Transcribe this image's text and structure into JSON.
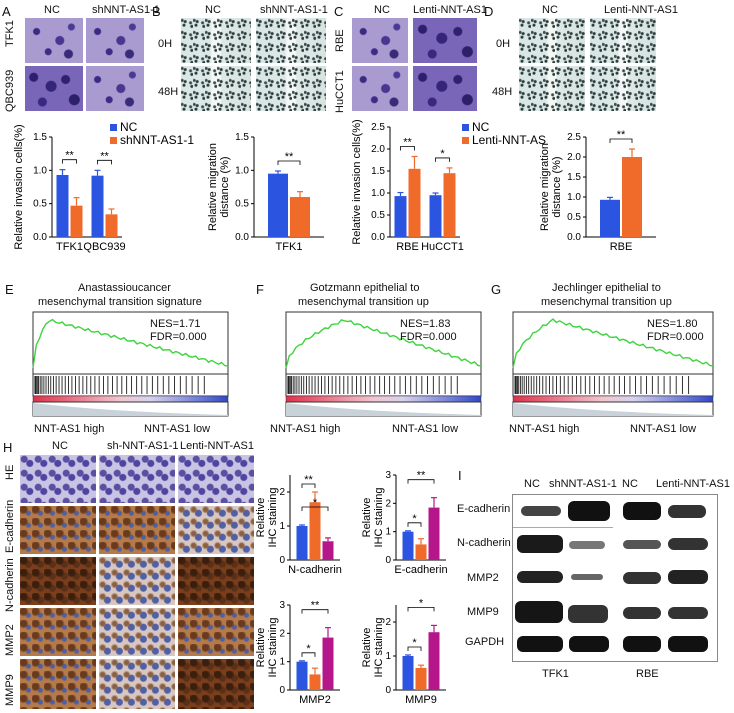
{
  "panels": {
    "A": {
      "letter": "A",
      "col_labels": [
        "NC",
        "shNNT-AS1-1"
      ],
      "row_labels": [
        "TFK1",
        "QBC939"
      ]
    },
    "B": {
      "letter": "B",
      "col_labels": [
        "NC",
        "shNNT-AS1-1"
      ],
      "row_labels": [
        "0H",
        "48H"
      ]
    },
    "C": {
      "letter": "C",
      "col_labels": [
        "NC",
        "Lenti-NNT-AS1"
      ],
      "row_labels": [
        "RBE",
        "HuCCT1"
      ]
    },
    "D": {
      "letter": "D",
      "col_labels": [
        "NC",
        "Lenti-NNT-AS1"
      ],
      "row_labels": [
        "0H",
        "48H"
      ]
    },
    "E": {
      "letter": "E",
      "title_line1": "Anastassioucancer",
      "title_line2": "mesenchymal transition signature",
      "nes": "NES=1.71",
      "fdr": "FDR=0.000",
      "left": "NNT-AS1 high",
      "right": "NNT-AS1 low"
    },
    "F": {
      "letter": "F",
      "title_line1": "Gotzmann epithelial to",
      "title_line2": "mesenchymal transition up",
      "nes": "NES=1.83",
      "fdr": "FDR=0.000",
      "left": "NNT-AS1 high",
      "right": "NNT-AS1 low"
    },
    "G": {
      "letter": "G",
      "title_line1": "Jechlinger epithelial to",
      "title_line2": "mesenchymal transition up",
      "nes": "NES=1.80",
      "fdr": "FDR=0.000",
      "left": "NNT-AS1 high",
      "right": "NNT-AS1 low"
    },
    "H": {
      "letter": "H",
      "col_labels": [
        "NC",
        "sh-NNT-AS1-1",
        "Lenti-NNT-AS1"
      ],
      "row_labels": [
        "HE",
        "E-cadherin",
        "N-cadherin",
        "MMP2",
        "MMP9"
      ]
    },
    "I": {
      "letter": "I",
      "lane_labels": [
        "NC",
        "shNNT-AS1-1",
        "NC",
        "Lenti-NNT-AS1"
      ],
      "row_labels": [
        "E-cadherin",
        "N-cadherin",
        "MMP2",
        "MMP9",
        "GAPDH"
      ],
      "group_labels": [
        "TFK1",
        "RBE"
      ]
    }
  },
  "colors": {
    "blue": "#2b54e0",
    "orange": "#f06a2a",
    "magenta": "#b5168a"
  },
  "sig": {
    "two": "**",
    "one": "*"
  },
  "chart_data": [
    {
      "id": "A",
      "type": "bar",
      "categories": [
        "TFK1",
        "QBC939"
      ],
      "series": [
        {
          "name": "NC",
          "values": [
            0.93,
            0.92
          ],
          "err": [
            0.08,
            0.08
          ]
        },
        {
          "name": "shNNT-AS1-1",
          "values": [
            0.47,
            0.34
          ],
          "err": [
            0.12,
            0.08
          ]
        }
      ],
      "ylabel": "Relative invasion cells(%)",
      "ylim": [
        0,
        1.5
      ],
      "yticks": [
        "0.0",
        "0.5",
        "1.0",
        "1.5"
      ]
    },
    {
      "id": "B",
      "type": "bar",
      "categories": [
        "TFK1"
      ],
      "series": [
        {
          "name": "NC",
          "values": [
            0.95
          ],
          "err": [
            0.04
          ]
        },
        {
          "name": "shNNT-AS1-1",
          "values": [
            0.6
          ],
          "err": [
            0.08
          ]
        }
      ],
      "ylabel": "Relative migration distance (%)",
      "ylim": [
        0,
        1.5
      ],
      "yticks": [
        "0.0",
        "0.5",
        "1.0",
        "1.5"
      ]
    },
    {
      "id": "C",
      "type": "bar",
      "categories": [
        "RBE",
        "HuCCT1"
      ],
      "series": [
        {
          "name": "NC",
          "values": [
            0.93,
            0.95
          ],
          "err": [
            0.08,
            0.05
          ]
        },
        {
          "name": "Lenti-NNT-AS",
          "values": [
            1.55,
            1.45
          ],
          "err": [
            0.28,
            0.12
          ]
        }
      ],
      "ylabel": "Relative invasion cells(%)",
      "ylim": [
        0,
        2.5
      ],
      "yticks": [
        "0.0",
        "0.5",
        "1.0",
        "1.5",
        "2.0",
        "2.5"
      ]
    },
    {
      "id": "D",
      "type": "bar",
      "categories": [
        "RBE"
      ],
      "series": [
        {
          "name": "NC",
          "values": [
            0.93
          ],
          "err": [
            0.06
          ]
        },
        {
          "name": "Lenti-NNT-AS1",
          "values": [
            2.0
          ],
          "err": [
            0.2
          ]
        }
      ],
      "ylabel": "Relative migration distance (%)",
      "ylim": [
        0,
        2.5
      ],
      "yticks": [
        "0.0",
        "0.5",
        "1.0",
        "1.5",
        "2.0",
        "2.5"
      ]
    },
    {
      "id": "H1",
      "type": "bar",
      "categories": [
        "N-cadherin"
      ],
      "series": [
        {
          "values": [
            1.0
          ],
          "err": [
            0.03
          ]
        },
        {
          "values": [
            1.7
          ],
          "err": [
            0.3
          ]
        },
        {
          "values": [
            0.55
          ],
          "err": [
            0.1
          ]
        }
      ],
      "ylabel": "Relative IHC staining",
      "ylim": [
        0,
        2.5
      ],
      "yticks": [
        "0",
        "1",
        "2"
      ]
    },
    {
      "id": "H2",
      "type": "bar",
      "categories": [
        "E-cadherin"
      ],
      "series": [
        {
          "values": [
            1.0
          ],
          "err": [
            0.03
          ]
        },
        {
          "values": [
            0.55
          ],
          "err": [
            0.2
          ]
        },
        {
          "values": [
            1.85
          ],
          "err": [
            0.35
          ]
        }
      ],
      "ylabel": "Relative IHC staining",
      "ylim": [
        0,
        3
      ],
      "yticks": [
        "0",
        "1",
        "2",
        "3"
      ]
    },
    {
      "id": "H3",
      "type": "bar",
      "categories": [
        "MMP2"
      ],
      "series": [
        {
          "values": [
            1.0
          ],
          "err": [
            0.03
          ]
        },
        {
          "values": [
            0.55
          ],
          "err": [
            0.22
          ]
        },
        {
          "values": [
            1.85
          ],
          "err": [
            0.35
          ]
        }
      ],
      "ylabel": "Relative IHC staining",
      "ylim": [
        0,
        3
      ],
      "yticks": [
        "0",
        "1",
        "2",
        "3"
      ]
    },
    {
      "id": "H4",
      "type": "bar",
      "categories": [
        "MMP9"
      ],
      "series": [
        {
          "values": [
            1.0
          ],
          "err": [
            0.03
          ]
        },
        {
          "values": [
            0.65
          ],
          "err": [
            0.08
          ]
        },
        {
          "values": [
            1.7
          ],
          "err": [
            0.2
          ]
        }
      ],
      "ylabel": "Relative IHC staining",
      "ylim": [
        0,
        2.5
      ],
      "yticks": [
        "0",
        "1",
        "2"
      ]
    }
  ]
}
